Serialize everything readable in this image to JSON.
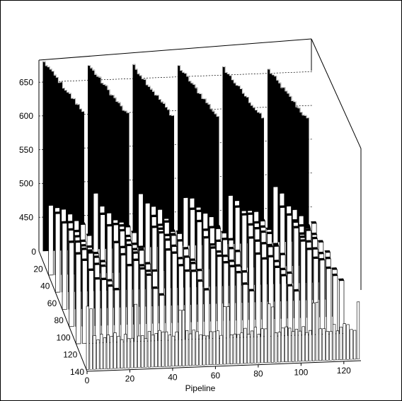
{
  "chart_data": {
    "type": "bar3d",
    "title": "",
    "xlabel": "Pipeline",
    "ylabel": "",
    "zlabel": "",
    "x_ticks": [
      "0",
      "20",
      "40",
      "60",
      "80",
      "100",
      "120"
    ],
    "y_ticks": [
      "0",
      "20",
      "40",
      "60",
      "80",
      "100",
      "120",
      "140"
    ],
    "z_ticks": [
      "450",
      "500",
      "550",
      "600",
      "650"
    ],
    "x_range": [
      0,
      128
    ],
    "y_range": [
      0,
      140
    ],
    "z_range": [
      400,
      680
    ],
    "bar_fill": "#ffffff",
    "bar_stroke": "#000000",
    "background": "#ffffff",
    "gridlines": "dotted",
    "group_count": 6,
    "group_size": 21,
    "peak_values_front_to_back": [
      680,
      672,
      668,
      665,
      660,
      655
    ],
    "ridge_decay_per_channel": 4.2,
    "row_base_values": [
      520,
      535,
      548,
      560,
      570
    ],
    "floor_value": 430
  }
}
